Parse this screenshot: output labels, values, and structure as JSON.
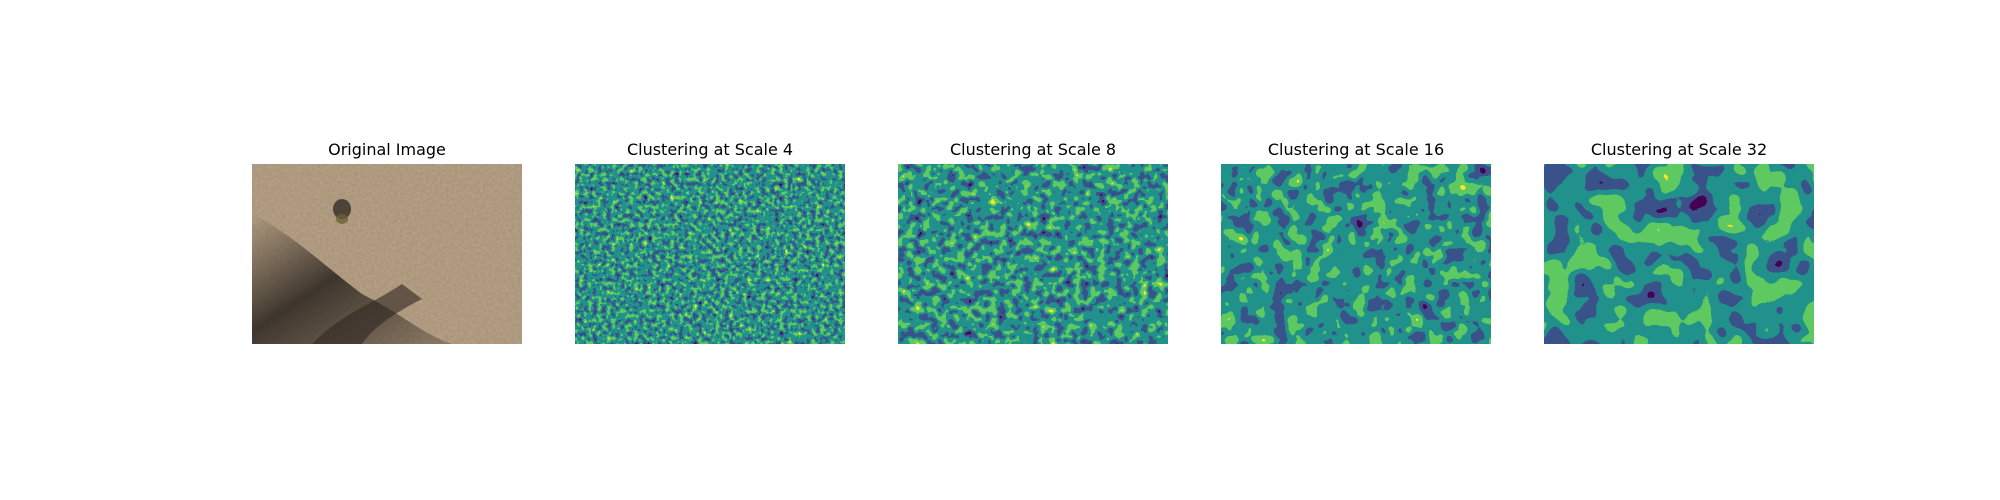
{
  "panels": [
    {
      "title": "Original Image",
      "kind": "photo"
    },
    {
      "title": "Clustering at Scale 4",
      "kind": "clusters",
      "scale": 4
    },
    {
      "title": "Clustering at Scale 8",
      "kind": "clusters",
      "scale": 8
    },
    {
      "title": "Clustering at Scale 16",
      "kind": "clusters",
      "scale": 16
    },
    {
      "title": "Clustering at Scale 32",
      "kind": "clusters",
      "scale": 32
    }
  ],
  "cluster_colors": [
    "#440154",
    "#3b528b",
    "#21918c",
    "#5ec962",
    "#fde725"
  ]
}
